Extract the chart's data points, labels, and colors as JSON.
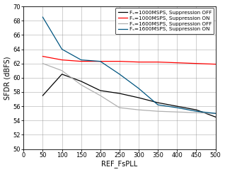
{
  "xlabel": "REF_FsPLL",
  "ylabel": "SFDR (dBFS)",
  "xlim": [
    0,
    500
  ],
  "ylim": [
    50,
    70
  ],
  "xticks": [
    0,
    50,
    100,
    150,
    200,
    250,
    300,
    350,
    400,
    450,
    500
  ],
  "yticks": [
    50,
    52,
    54,
    56,
    58,
    60,
    62,
    64,
    66,
    68,
    70
  ],
  "lines": [
    {
      "label": "Fₛ=1000MSPS, Suppression OFF",
      "color": "#000000",
      "x": [
        50,
        100,
        150,
        200,
        250,
        300,
        350,
        400,
        450,
        500
      ],
      "y": [
        57.5,
        60.5,
        59.5,
        58.2,
        57.8,
        57.2,
        56.5,
        56.0,
        55.5,
        54.5
      ]
    },
    {
      "label": "Fₛ=1000MSPS, Suppression ON",
      "color": "#ff0000",
      "x": [
        50,
        100,
        150,
        200,
        250,
        300,
        350,
        400,
        450,
        500
      ],
      "y": [
        63.0,
        62.5,
        62.3,
        62.3,
        62.3,
        62.2,
        62.2,
        62.1,
        62.0,
        61.9
      ]
    },
    {
      "label": "Fₛ=1600MSPS, Suppression OFF",
      "color": "#b0b0b0",
      "x": [
        50,
        100,
        150,
        200,
        250,
        300,
        350,
        400,
        450,
        500
      ],
      "y": [
        62.0,
        61.0,
        59.0,
        57.5,
        55.8,
        55.5,
        55.3,
        55.2,
        55.1,
        55.0
      ]
    },
    {
      "label": "Fₛ=1600MSPS, Suppression ON",
      "color": "#005580",
      "x": [
        50,
        100,
        150,
        200,
        250,
        300,
        350,
        400,
        450,
        500
      ],
      "y": [
        68.5,
        64.0,
        62.5,
        62.3,
        60.5,
        58.5,
        56.2,
        55.8,
        55.3,
        55.0
      ]
    }
  ],
  "legend_labels": [
    "Fₛ=1000MSPS, Suppression OFF",
    "Fₛ=1000MSPS, Suppression ON",
    "Fₛ=1600MSPS, Suppression OFF",
    "Fₛ=1600MSPS, Suppression ON"
  ],
  "legend_colors": [
    "#000000",
    "#ff0000",
    "#b0b0b0",
    "#005580"
  ],
  "legend_fontsize": 5.2,
  "axis_label_fontsize": 7,
  "tick_fontsize": 6,
  "background_color": "#ffffff",
  "grid_color": "#888888",
  "line_width": 0.9
}
